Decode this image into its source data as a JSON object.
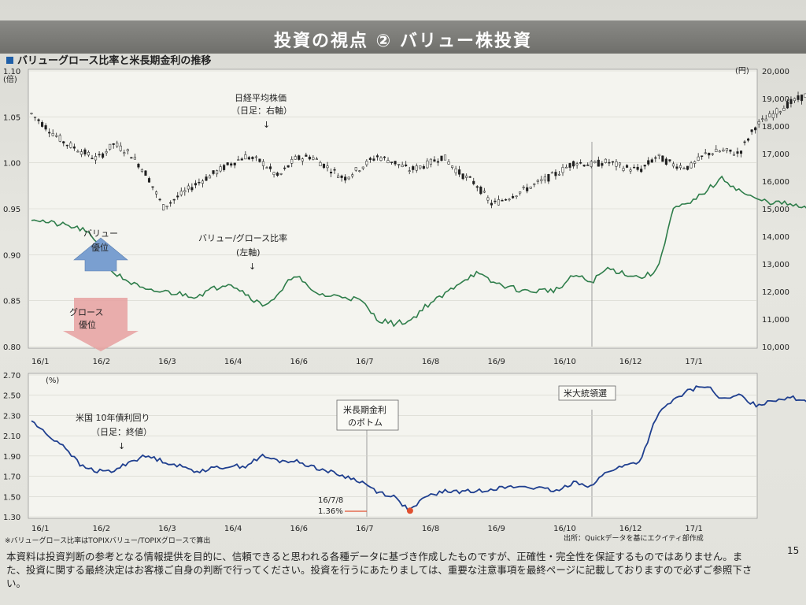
{
  "header": {
    "title": "投資の視点 ② バリュー株投資"
  },
  "section_title": "バリューグロース比率と米長期金利の推移",
  "colors": {
    "nikkei": "#1f1f1f",
    "ratio": "#2e7d4a",
    "yield": "#1f3f8f",
    "value_arrow": "#7a9fd0",
    "growth_arrow": "#e08a8a",
    "marker": "#e05030"
  },
  "chart_data": [
    {
      "type": "line",
      "x_tick_labels": [
        "16/1",
        "16/2",
        "16/3",
        "16/4",
        "16/6",
        "16/7",
        "16/8",
        "16/9",
        "16/10",
        "16/12",
        "17/1"
      ],
      "left_axis": {
        "label": "(倍)",
        "ticks": [
          "1.10",
          "1.05",
          "1.00",
          "0.95",
          "0.90",
          "0.85",
          "0.80"
        ],
        "ylim": [
          0.8,
          1.1
        ]
      },
      "right_axis": {
        "label": "(円)",
        "ticks": [
          "20,000",
          "19,000",
          "18,000",
          "17,000",
          "16,000",
          "15,000",
          "14,000",
          "13,000",
          "12,000",
          "11,000",
          "10,000"
        ],
        "ylim": [
          10000,
          20000
        ]
      },
      "series": [
        {
          "name": "日経平均株価",
          "axis": "right",
          "style": "candlestick",
          "x": [
            0,
            0.25,
            0.5,
            0.75,
            1.0,
            1.25,
            1.5,
            1.75,
            2.0,
            2.5,
            3.0,
            3.25,
            3.5,
            3.75,
            4.0,
            4.25,
            4.5,
            4.75,
            5.0,
            5.25,
            5.5,
            5.75,
            6.0,
            6.25,
            6.5,
            6.75,
            7.0,
            7.5,
            8.0,
            8.25,
            8.5,
            8.75,
            9.0,
            9.25,
            9.5,
            9.75,
            10.0,
            10.25,
            10.5,
            10.75,
            11.0,
            11.25,
            11.5,
            11.75,
            12.0,
            12.25,
            12.5,
            12.75,
            13.0
          ],
          "values": [
            18450,
            17900,
            17400,
            17100,
            16800,
            17350,
            17000,
            16250,
            15050,
            15900,
            16600,
            16900,
            16700,
            16150,
            16800,
            16900,
            16500,
            16100,
            16500,
            16900,
            16700,
            16400,
            16600,
            16900,
            16300,
            15900,
            15150,
            15700,
            16300,
            16700,
            16600,
            16700,
            16500,
            16400,
            16900,
            16600,
            16500,
            17000,
            17100,
            17000,
            18000,
            18400,
            18800,
            19100,
            19400,
            19200,
            19000,
            19100,
            19300
          ]
        },
        {
          "name": "バリュー/グロース比率",
          "axis": "left",
          "x": [
            0,
            0.25,
            0.5,
            0.75,
            1.0,
            1.25,
            1.5,
            1.75,
            2.0,
            2.5,
            3.0,
            3.25,
            3.5,
            3.75,
            4.0,
            4.25,
            4.5,
            4.75,
            5.0,
            5.25,
            5.5,
            5.75,
            6.0,
            6.25,
            6.5,
            6.75,
            7.0,
            7.5,
            8.0,
            8.25,
            8.5,
            8.75,
            9.0,
            9.25,
            9.5,
            9.75,
            10.0,
            10.25,
            10.5,
            10.75,
            11.0,
            11.25,
            11.5,
            11.75,
            12.0,
            12.25,
            12.5,
            12.75,
            13.0
          ],
          "values": [
            0.94,
            0.935,
            0.932,
            0.928,
            0.915,
            0.88,
            0.87,
            0.86,
            0.86,
            0.855,
            0.87,
            0.858,
            0.845,
            0.855,
            0.88,
            0.86,
            0.855,
            0.855,
            0.85,
            0.83,
            0.825,
            0.828,
            0.845,
            0.855,
            0.87,
            0.88,
            0.87,
            0.86,
            0.862,
            0.878,
            0.87,
            0.885,
            0.88,
            0.875,
            0.882,
            0.95,
            0.955,
            0.97,
            0.983,
            0.97,
            0.96,
            0.957,
            0.955,
            0.95,
            0.955,
            0.953,
            0.955,
            0.957,
            0.957
          ]
        }
      ],
      "annotations": [
        {
          "text": "日経平均株価",
          "target": "nikkei"
        },
        {
          "text": "（日足：右軸）",
          "target": "nikkei"
        },
        {
          "text": "↓",
          "target": "nikkei"
        },
        {
          "text": "バリュー/グロース比率",
          "target": "ratio"
        },
        {
          "text": "(左軸)",
          "target": "ratio"
        },
        {
          "text": "↓",
          "target": "ratio"
        },
        {
          "text": "バリュー",
          "target": "value_arrow"
        },
        {
          "text": "優位",
          "target": "value_arrow"
        },
        {
          "text": "グロース",
          "target": "growth_arrow"
        },
        {
          "text": "優位",
          "target": "growth_arrow"
        }
      ]
    },
    {
      "type": "line",
      "x_tick_labels": [
        "16/1",
        "16/2",
        "16/3",
        "16/4",
        "16/6",
        "16/7",
        "16/8",
        "16/9",
        "16/10",
        "16/12",
        "17/1"
      ],
      "left_axis": {
        "label": "(%)",
        "ticks": [
          "2.70",
          "2.50",
          "2.30",
          "2.10",
          "1.90",
          "1.70",
          "1.50",
          "1.30"
        ],
        "ylim": [
          1.3,
          2.7
        ]
      },
      "series": [
        {
          "name": "米国 10年債利回り",
          "x": [
            0,
            0.25,
            0.5,
            0.75,
            1.0,
            1.25,
            1.5,
            1.75,
            2.0,
            2.5,
            3.0,
            3.25,
            3.5,
            3.75,
            4.0,
            4.25,
            4.5,
            4.75,
            5.0,
            5.25,
            5.5,
            5.75,
            6.0,
            6.25,
            6.5,
            6.75,
            7.0,
            7.5,
            8.0,
            8.25,
            8.5,
            8.75,
            9.0,
            9.25,
            9.5,
            9.75,
            10.0,
            10.25,
            10.5,
            10.75,
            11.0,
            11.25,
            11.5,
            11.75,
            12.0,
            12.25,
            12.5,
            12.75,
            13.0
          ],
          "values": [
            2.25,
            2.1,
            2.0,
            1.8,
            1.75,
            1.75,
            1.85,
            1.9,
            1.85,
            1.75,
            1.8,
            1.8,
            1.9,
            1.85,
            1.85,
            1.8,
            1.75,
            1.7,
            1.65,
            1.55,
            1.5,
            1.36,
            1.5,
            1.55,
            1.55,
            1.55,
            1.58,
            1.6,
            1.55,
            1.65,
            1.6,
            1.75,
            1.8,
            1.85,
            2.3,
            2.45,
            2.55,
            2.6,
            2.45,
            2.5,
            2.4,
            2.45,
            2.48,
            2.45,
            2.4,
            2.45,
            2.48,
            2.42,
            2.45
          ]
        }
      ],
      "annotations": [
        {
          "text": "米国 10年債利回り"
        },
        {
          "text": "（日足：終値）"
        },
        {
          "text": "↓"
        },
        {
          "text": "米長期金利"
        },
        {
          "text": "のボトム"
        },
        {
          "text": "16/7/8"
        },
        {
          "text": "1.36%"
        },
        {
          "text": "米大統領選"
        }
      ]
    }
  ],
  "footnote": "※バリューグロース比率はTOPIXバリュー/TOPIXグロースで算出",
  "source": "出所：Quickデータを基にエクイティ部作成",
  "disclaimer": "本資料は投資判断の参考となる情報提供を目的に、信頼できると思われる各種データに基づき作成したものですが、正確性・完全性を保証するものではありません。また、投資に関する最終決定はお客様ご自身の判断で行ってください。投資を行うにあたりましては、重要な注意事項を最終ページに記載しておりますので必ずご参照下さい。",
  "page_number": "15"
}
